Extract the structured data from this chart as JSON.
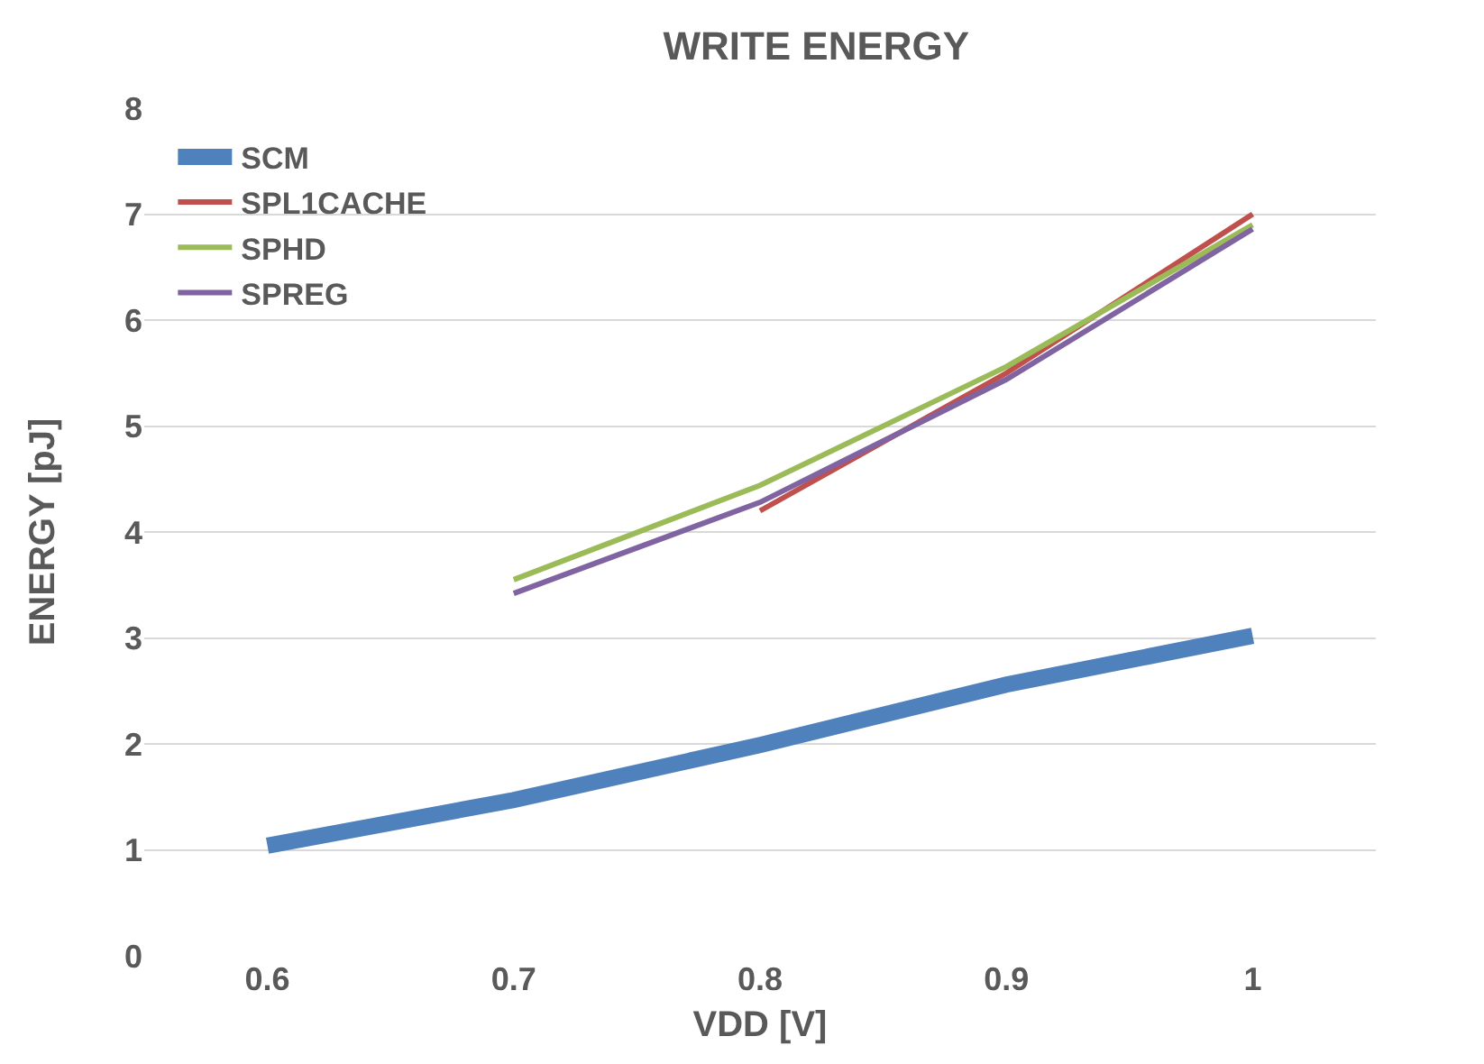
{
  "chart_data": {
    "type": "line",
    "title": "WRITE ENERGY",
    "xlabel": "VDD [V]",
    "ylabel": "ENERGY [pJ]",
    "x": [
      0.6,
      0.7,
      0.8,
      0.9,
      1
    ],
    "series": [
      {
        "name": "SCM",
        "color": "#4f81bd",
        "values": [
          1.04,
          1.47,
          1.99,
          2.56,
          3.02
        ]
      },
      {
        "name": "SPL1CACHE",
        "color": "#c0504d",
        "values": [
          null,
          null,
          4.2,
          5.5,
          7.0
        ]
      },
      {
        "name": "SPHD",
        "color": "#9bbb59",
        "values": [
          null,
          3.55,
          4.44,
          5.56,
          6.9
        ]
      },
      {
        "name": "SPREG",
        "color": "#8064a2",
        "values": [
          null,
          3.42,
          4.28,
          5.44,
          6.86
        ]
      }
    ],
    "xlim": [
      0.55,
      1.05
    ],
    "xticks": [
      0.6,
      0.7,
      0.8,
      0.9,
      1
    ],
    "ylim": [
      0,
      8
    ],
    "yticks": [
      0,
      1,
      2,
      3,
      4,
      5,
      6,
      7,
      8
    ],
    "grid": "y",
    "legend": "top left",
    "line_style": "solid",
    "marker": "none"
  }
}
